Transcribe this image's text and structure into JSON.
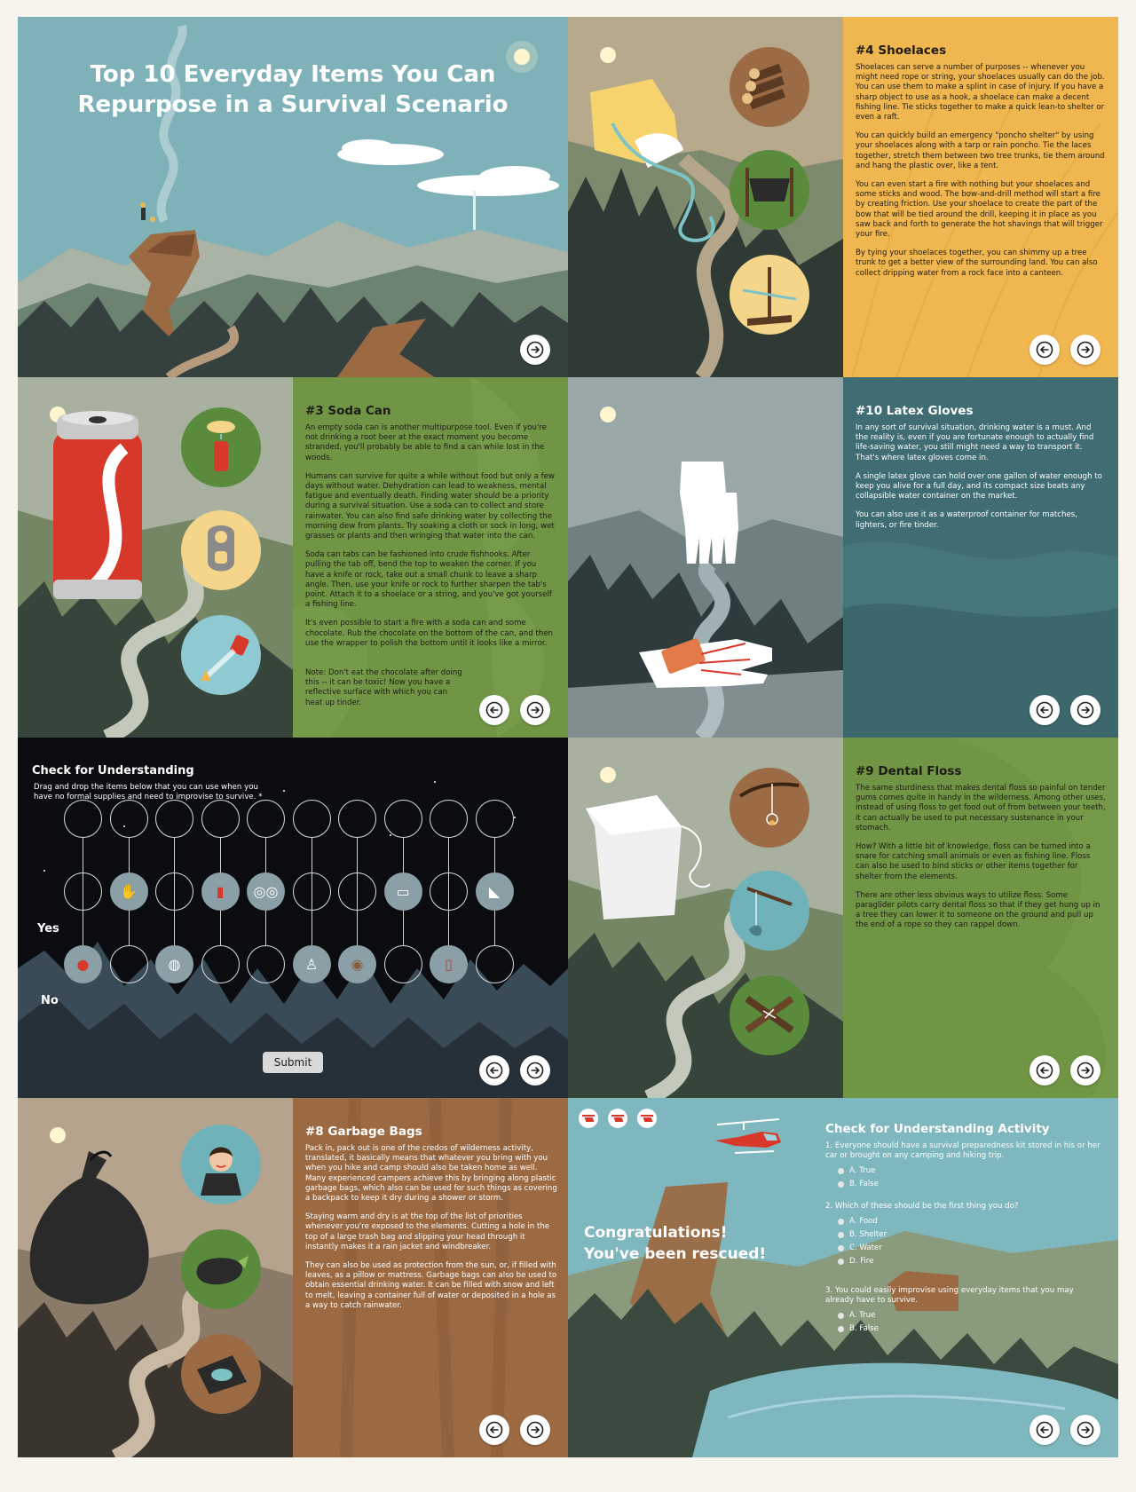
{
  "cover": {
    "title_line1": "Top 10 Everyday Items You Can",
    "title_line2": "Repurpose in a Survival Scenario"
  },
  "shoelaces": {
    "heading": "#4 Shoelaces",
    "paragraphs": [
      "Shoelaces can serve a number of purposes -- whenever you might need rope or string, your shoelaces usually can do the job. You can use them to make a splint in case of injury. If you have a sharp object to use as a hook, a shoelace can make a decent fishing line. Tie sticks together to make a quick lean-to shelter or even a raft.",
      "You can quickly build an emergency \"poncho shelter\" by using your shoelaces along with a tarp or rain poncho. Tie the laces together, stretch them between two tree trunks, tie them around and hang the plastic over, like a tent.",
      "You can even start a fire with nothing but your shoelaces and some sticks and wood. The bow-and-drill method will start a fire by creating friction. Use your shoelace to create the part of the bow that will be tied around the drill, keeping it in place as you saw back and forth to generate the hot shavings that will trigger your fire.",
      "By tying your shoelaces together, you can shimmy up a tree trunk to get a better view of the surrounding land. You can also collect dripping water from a rock face into a canteen."
    ]
  },
  "soda": {
    "heading": "#3 Soda Can",
    "paragraphs": [
      "An empty soda can is another multipurpose tool. Even if you're not drinking a root beer at the exact moment you become stranded, you'll probably be able to find a can while lost in the woods.",
      "Humans can survive for quite a while without food but only a few days without water. Dehydration can lead to weakness, mental fatigue and eventually death. Finding water should be a priority during a survival situation. Use a soda can to collect and store rainwater. You can also find safe drinking water by collecting the morning dew from plants. Try soaking a cloth or sock in long, wet grasses or plants and then wringing that water into the can.",
      "Soda can tabs can be fashioned into crude fishhooks. After pulling the tab off, bend the top to weaken the corner. If you have a knife or rock, take out a small chunk to leave a sharp angle. Then, use your knife or rock to further sharpen the tab's point. Attach it to a shoelace or a string, and you've got yourself a fishing line.",
      "It's even possible to start a fire with a soda can and some chocolate. Rub the chocolate on the bottom of the can, and then use the wrapper to polish the bottom until it looks like a mirror."
    ],
    "note": "Note: Don't eat the chocolate after doing this -- it can be toxic! Now you have a reflective surface with which you can heat up tinder."
  },
  "gloves": {
    "heading": "#10 Latex Gloves",
    "paragraphs": [
      "In any sort of survival situation, drinking water is a must. And the reality is, even if you are fortunate enough to actually find life-saving water, you still might need a way to transport it. That's where latex gloves come in.",
      "A single latex glove can hold over one gallon of water enough to keep you alive for a full day, and its compact size beats any collapsible water container on the market.",
      "You can also use it as a waterproof container for matches, lighters, or fire tinder."
    ]
  },
  "check": {
    "title": "Check for Understanding",
    "instructions": "Drag and drop the items below that you can use when you have no formal supplies and need to improvise to survive. *",
    "yes_label": "Yes",
    "no_label": "No",
    "submit_label": "Submit",
    "yes_items": [
      "",
      "glove-icon",
      "",
      "soda-can-icon",
      "glasses-icon",
      "",
      "",
      "floss-icon",
      "",
      "sock-icon"
    ],
    "no_items": [
      "bottle-cap-icon",
      "",
      "ball-icon",
      "",
      "",
      "tooth-icon",
      "cookie-icon",
      "",
      "lipstick-icon",
      ""
    ]
  },
  "floss": {
    "heading": "#9 Dental Floss",
    "paragraphs": [
      "The same sturdiness that makes dental floss so painful on tender gums comes quite in handy in the wilderness. Among other uses, instead of using floss to get food out of from between your teeth, it can actually be used to put necessary sustenance in your stomach.",
      "How? With a little bit of knowledge, floss can be turned into a snare for catching small animals or even as fishing line. Floss can also be used to bind sticks or other items together for shelter from the elements.",
      "There are other less obvious ways to utilize floss. Some paraglider pilots carry dental floss so that if they get hung up in a tree they can lower it to someone on the ground and pull up the end of a rope so they can rappel down."
    ]
  },
  "garbage": {
    "heading": "#8 Garbage Bags",
    "paragraphs": [
      "Pack in, pack out is one of the credos of wilderness activity, translated, it basically means that whatever you bring with you when you hike and camp should also be taken home as well. Many experienced campers achieve this by bringing along plastic garbage bags, which also can be used for such things as covering a backpack to keep it dry during a shower or storm.",
      "Staying warm and dry is at the top of the list of priorities whenever you're exposed to the elements. Cutting a hole in the top of a large trash bag and slipping your head through it instantly makes it a rain jacket and windbreaker.",
      "They can also be used as protection from the sun, or, if filled with leaves, as a pillow or mattress. Garbage bags can also be used to obtain essential drinking water. It can be filled with snow and left to melt, leaving a container full of water or deposited in a hole as a way to catch rainwater."
    ]
  },
  "final": {
    "congrats_line1": "Congratulations!",
    "congrats_line2": "You've been rescued!",
    "activity_title": "Check for Understanding Activity",
    "questions": [
      {
        "text": "1. Everyone should have a survival preparedness kit stored in his or her car or brought on any camping and hiking trip.",
        "options": [
          "A. True",
          "B. False"
        ]
      },
      {
        "text": "2. Which of these should be the first thing you do?",
        "options": [
          "A. Food",
          "B. Shelter",
          "C. Water",
          "D. Fire"
        ]
      },
      {
        "text": "3. You could easily improvise using everyday items that you may already have to survive.",
        "options": [
          "A. True",
          "B. False"
        ]
      }
    ]
  },
  "colors": {
    "cover_sky": "#7fb2b8",
    "shoelaces_panel": "#f0b64f",
    "soda_panel": "#6f9545",
    "gloves_panel": "#3f6d73",
    "night_sky": "#0a0c10",
    "floss_panel": "#6f9545",
    "garbage_panel": "#9b6a43",
    "rescue_sky": "#7fb7be"
  }
}
